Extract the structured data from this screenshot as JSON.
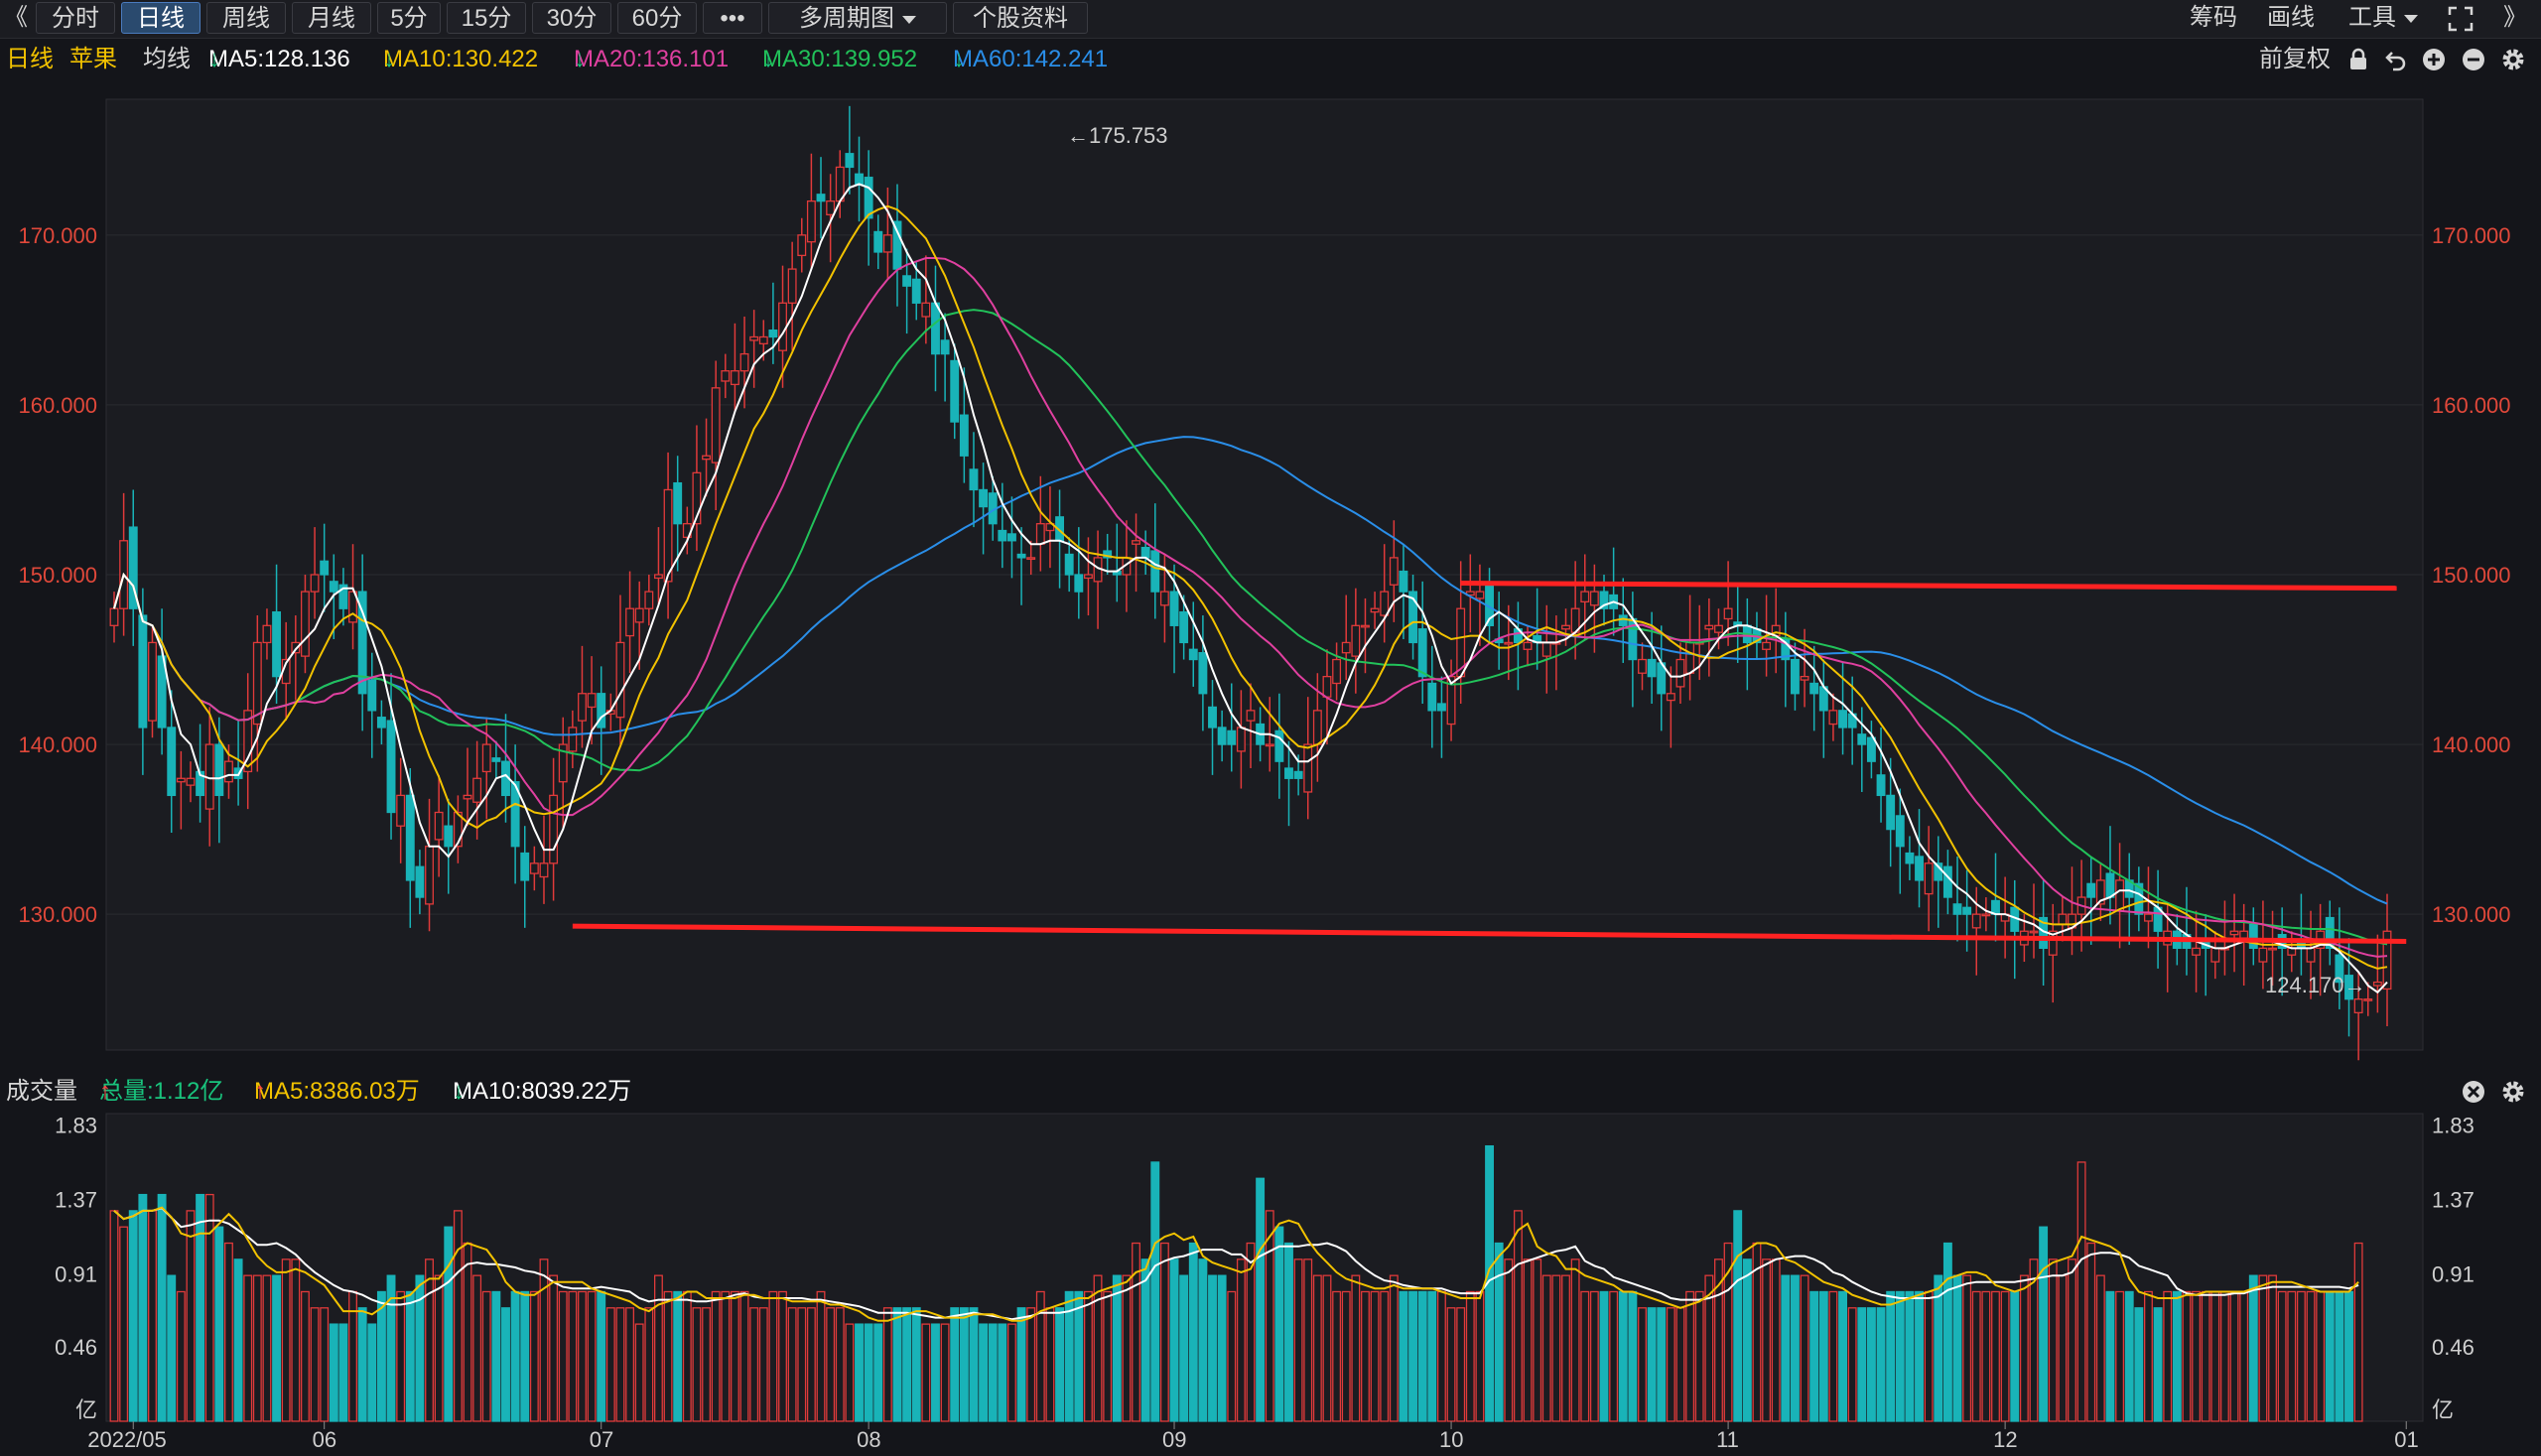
{
  "toolbar": {
    "collapse_left": "《",
    "tabs": [
      "分时",
      "日线",
      "周线",
      "月线",
      "5分",
      "15分",
      "30分",
      "60分"
    ],
    "active_tab": "日线",
    "more": "•••",
    "multi_period": "多周期图",
    "stock_info": "个股资料",
    "chips": "筹码",
    "draw": "画线",
    "tools": "工具",
    "collapse_right": "》"
  },
  "ma_bar": {
    "period": "日线",
    "stock": "苹果",
    "ma_label": "均线",
    "ma5": "MA5:128.136",
    "ma10": "MA10:130.422",
    "ma20": "MA20:136.101",
    "ma30": "MA30:139.952",
    "ma60": "MA60:142.241",
    "arrow_down": "↓",
    "adjust": "前复权"
  },
  "colors": {
    "ma5": "#ffffff",
    "ma10": "#f2c200",
    "ma20": "#e040a0",
    "ma30": "#22c25a",
    "ma60": "#2a8ee8",
    "bull": "#e03a3a",
    "bear": "#19b3b8",
    "trendline": "#ff2222",
    "axis_text": "#e0483a",
    "vol_axis_text": "#cfcfcf"
  },
  "price_axis": {
    "ticks": [
      "170.000",
      "160.000",
      "150.000",
      "140.000",
      "130.000"
    ],
    "high_label": "←175.753",
    "low_label": "124.170→"
  },
  "volume": {
    "title": "成交量",
    "total": "总量:1.12亿",
    "ma5": "MA5:8386.03万",
    "ma10": "MA10:8039.22万",
    "arrow_up": "↑",
    "arrow_down": "↓",
    "ticks": [
      "1.83",
      "1.37",
      "0.91",
      "0.46",
      "亿"
    ]
  },
  "date_axis": [
    "2022/05",
    "06",
    "07",
    "08",
    "09",
    "10",
    "11",
    "12",
    "01"
  ],
  "chart_data": {
    "type": "candlestick",
    "instrument": "苹果",
    "period": "日线",
    "ylim": [
      122,
      178
    ],
    "x_labels": [
      "2022/05",
      "06",
      "07",
      "08",
      "09",
      "10",
      "11",
      "12",
      "01"
    ],
    "high_point": 175.753,
    "low_point": 124.17,
    "trend_lines": [
      {
        "from_index": 141,
        "to_index": 239,
        "y_from": 149.5,
        "y_to": 149.2
      },
      {
        "from_index": 48,
        "to_index": 240,
        "y_from": 129.3,
        "y_to": 128.4
      }
    ],
    "closes": [
      148,
      152,
      148,
      141,
      146,
      141,
      137,
      138,
      138,
      137,
      140,
      137,
      139,
      138,
      142,
      146,
      147,
      144,
      145,
      146,
      149,
      150,
      150,
      149,
      148,
      149,
      143,
      142,
      141,
      136,
      137,
      132,
      131,
      134,
      136,
      134,
      136,
      137,
      138,
      140,
      139,
      137,
      134,
      132,
      133,
      133,
      137,
      140,
      141,
      143,
      143,
      141,
      142,
      146,
      148,
      148,
      149,
      150,
      155,
      153,
      153,
      156,
      157,
      161,
      162,
      162,
      163,
      164,
      164,
      164,
      166,
      168,
      170,
      172,
      172,
      172,
      174,
      174,
      173,
      171,
      169,
      170,
      168,
      167,
      166,
      166,
      163,
      163,
      159,
      157,
      155,
      154,
      153,
      152,
      152,
      151,
      151,
      153,
      153,
      152,
      150,
      149,
      150,
      151,
      151,
      150,
      151,
      152,
      151,
      149,
      149,
      147,
      146,
      145,
      143,
      141,
      140,
      140,
      141,
      142,
      140,
      140,
      139,
      138,
      138,
      140,
      142,
      144,
      145,
      146,
      147,
      147,
      148,
      149,
      151,
      149,
      146,
      144,
      142,
      142,
      144,
      148,
      149,
      149,
      147,
      146,
      146,
      146,
      146,
      146,
      146,
      146,
      147,
      148,
      149,
      149,
      148,
      148,
      147,
      145,
      145,
      144,
      143,
      143,
      145,
      146,
      146,
      147,
      147,
      148,
      147,
      146,
      146,
      146,
      147,
      145,
      143,
      144,
      143,
      142,
      142,
      141,
      141,
      140,
      139,
      137,
      135,
      134,
      133,
      132,
      133,
      132,
      131,
      130,
      130,
      130,
      130,
      130,
      130,
      129,
      129,
      129,
      128,
      129,
      130,
      130,
      131,
      131,
      132,
      131,
      132,
      131,
      130,
      130,
      129,
      129,
      128,
      128,
      128,
      128,
      128,
      128,
      129,
      129,
      128,
      128,
      128,
      128,
      128,
      128,
      128,
      129,
      128,
      126,
      125,
      125,
      125,
      126,
      129
    ],
    "ma_series": [
      "MA5",
      "MA10",
      "MA20",
      "MA30",
      "MA60"
    ],
    "ma_last": {
      "MA5": 128.136,
      "MA10": 130.422,
      "MA20": 136.101,
      "MA30": 139.952,
      "MA60": 142.241
    },
    "volume_ylim": [
      0,
      1.9
    ],
    "volume_unit": "亿",
    "volume_total_last": 1.12,
    "volumes": [
      1.3,
      1.2,
      1.3,
      1.4,
      1.3,
      1.4,
      0.9,
      0.8,
      1.3,
      1.4,
      1.4,
      1.2,
      1.1,
      1.0,
      0.9,
      0.9,
      0.9,
      0.9,
      1.0,
      1.0,
      0.8,
      0.7,
      0.7,
      0.6,
      0.6,
      0.8,
      0.7,
      0.6,
      0.8,
      0.9,
      0.8,
      0.8,
      0.9,
      1.0,
      0.9,
      1.2,
      1.3,
      1.1,
      0.9,
      0.8,
      0.8,
      0.7,
      0.8,
      0.8,
      0.8,
      1.0,
      0.9,
      0.8,
      0.8,
      0.8,
      0.8,
      0.8,
      0.7,
      0.7,
      0.7,
      0.6,
      0.7,
      0.9,
      0.8,
      0.8,
      0.8,
      0.7,
      0.7,
      0.8,
      0.8,
      0.8,
      0.8,
      0.7,
      0.7,
      0.8,
      0.8,
      0.7,
      0.7,
      0.7,
      0.8,
      0.7,
      0.7,
      0.6,
      0.6,
      0.6,
      0.6,
      0.7,
      0.7,
      0.7,
      0.7,
      0.6,
      0.6,
      0.6,
      0.7,
      0.7,
      0.7,
      0.6,
      0.6,
      0.6,
      0.6,
      0.7,
      0.7,
      0.8,
      0.7,
      0.7,
      0.8,
      0.8,
      0.8,
      0.9,
      0.8,
      0.9,
      0.9,
      1.1,
      1.0,
      1.6,
      1.1,
      1.0,
      0.9,
      1.1,
      1.0,
      0.9,
      0.9,
      0.8,
      1.0,
      1.1,
      1.5,
      1.3,
      1.2,
      1.1,
      1.0,
      1.0,
      0.9,
      0.9,
      0.8,
      0.8,
      0.9,
      0.8,
      0.8,
      0.8,
      0.9,
      0.8,
      0.8,
      0.8,
      0.8,
      0.8,
      0.7,
      0.7,
      0.8,
      0.8,
      1.7,
      1.1,
      1.0,
      1.3,
      1.0,
      1.0,
      0.9,
      0.9,
      0.9,
      1.0,
      0.8,
      0.8,
      0.8,
      0.8,
      0.8,
      0.8,
      0.7,
      0.7,
      0.7,
      0.7,
      0.7,
      0.8,
      0.8,
      0.9,
      1.0,
      1.1,
      1.3,
      1.0,
      1.1,
      1.0,
      1.0,
      0.9,
      0.9,
      0.9,
      0.8,
      0.8,
      0.8,
      0.8,
      0.7,
      0.7,
      0.7,
      0.7,
      0.8,
      0.8,
      0.8,
      0.8,
      0.8,
      0.9,
      1.1,
      0.9,
      0.9,
      0.8,
      0.8,
      0.8,
      0.8,
      0.8,
      0.9,
      1.0,
      1.2,
      1.0,
      0.9,
      1.0,
      1.6,
      1.1,
      0.9,
      0.8,
      0.8,
      0.8,
      0.7,
      0.8,
      0.7,
      0.8,
      0.8,
      0.8,
      0.8,
      0.8,
      0.8,
      0.8,
      0.8,
      0.8,
      0.9,
      0.9,
      0.9,
      0.8,
      0.8,
      0.8,
      0.8,
      0.8,
      0.8,
      0.8,
      0.8,
      1.1
    ]
  }
}
